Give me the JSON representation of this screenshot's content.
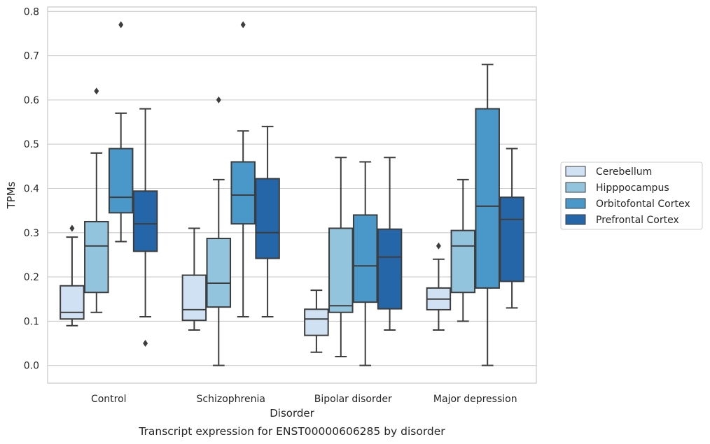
{
  "chart_data": {
    "type": "box",
    "title": "",
    "caption": "Transcript expression for ENST00000606285 by disorder",
    "xlabel": "Disorder",
    "ylabel": "TPMs",
    "ylim": [
      -0.04,
      0.81
    ],
    "yticks": [
      "0.0",
      "0.1",
      "0.2",
      "0.3",
      "0.4",
      "0.5",
      "0.6",
      "0.7",
      "0.8"
    ],
    "grid": "horizontal",
    "legend_placement": "right",
    "categories": [
      "Control",
      "Schizophrenia",
      "Bipolar disorder",
      "Major depression"
    ],
    "series": [
      {
        "name": "Cerebellum",
        "color": "#cfe1f2",
        "boxes": [
          {
            "whislo": 0.09,
            "q1": 0.105,
            "med": 0.12,
            "q3": 0.18,
            "whishi": 0.29,
            "fliers": [
              0.31
            ]
          },
          {
            "whislo": 0.08,
            "q1": 0.102,
            "med": 0.126,
            "q3": 0.204,
            "whishi": 0.31,
            "fliers": []
          },
          {
            "whislo": 0.03,
            "q1": 0.068,
            "med": 0.105,
            "q3": 0.127,
            "whishi": 0.17,
            "fliers": []
          },
          {
            "whislo": 0.08,
            "q1": 0.126,
            "med": 0.15,
            "q3": 0.175,
            "whishi": 0.24,
            "fliers": [
              0.27
            ]
          }
        ]
      },
      {
        "name": "Hipppocampus",
        "color": "#93c4de",
        "boxes": [
          {
            "whislo": 0.12,
            "q1": 0.165,
            "med": 0.27,
            "q3": 0.325,
            "whishi": 0.48,
            "fliers": [
              0.62
            ]
          },
          {
            "whislo": 0.0,
            "q1": 0.132,
            "med": 0.186,
            "q3": 0.287,
            "whishi": 0.42,
            "fliers": [
              0.6
            ]
          },
          {
            "whislo": 0.02,
            "q1": 0.12,
            "med": 0.135,
            "q3": 0.31,
            "whishi": 0.47,
            "fliers": []
          },
          {
            "whislo": 0.1,
            "q1": 0.165,
            "med": 0.27,
            "q3": 0.305,
            "whishi": 0.42,
            "fliers": []
          }
        ]
      },
      {
        "name": "Orbitofontal Cortex",
        "color": "#4a98c9",
        "boxes": [
          {
            "whislo": 0.28,
            "q1": 0.345,
            "med": 0.38,
            "q3": 0.49,
            "whishi": 0.57,
            "fliers": [
              0.77
            ]
          },
          {
            "whislo": 0.11,
            "q1": 0.32,
            "med": 0.385,
            "q3": 0.46,
            "whishi": 0.53,
            "fliers": [
              0.77
            ]
          },
          {
            "whislo": 0.0,
            "q1": 0.143,
            "med": 0.225,
            "q3": 0.34,
            "whishi": 0.46,
            "fliers": []
          },
          {
            "whislo": 0.0,
            "q1": 0.175,
            "med": 0.36,
            "q3": 0.58,
            "whishi": 0.68,
            "fliers": []
          }
        ]
      },
      {
        "name": "Prefrontal Cortex",
        "color": "#2566a9",
        "boxes": [
          {
            "whislo": 0.11,
            "q1": 0.258,
            "med": 0.32,
            "q3": 0.394,
            "whishi": 0.58,
            "fliers": [
              0.05
            ]
          },
          {
            "whislo": 0.11,
            "q1": 0.242,
            "med": 0.3,
            "q3": 0.422,
            "whishi": 0.54,
            "fliers": []
          },
          {
            "whislo": 0.08,
            "q1": 0.128,
            "med": 0.245,
            "q3": 0.308,
            "whishi": 0.47,
            "fliers": []
          },
          {
            "whislo": 0.13,
            "q1": 0.19,
            "med": 0.33,
            "q3": 0.38,
            "whishi": 0.49,
            "fliers": []
          }
        ]
      }
    ]
  }
}
